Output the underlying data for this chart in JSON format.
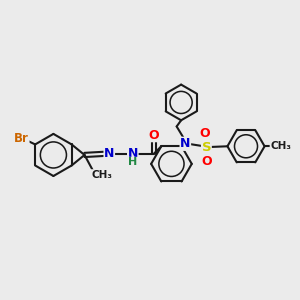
{
  "background_color": "#ebebeb",
  "bond_color": "#1a1a1a",
  "bond_width": 1.5,
  "atom_colors": {
    "Br": "#cc6600",
    "N": "#0000cc",
    "O": "#ff0000",
    "S": "#cccc00",
    "C": "#1a1a1a",
    "H": "#228844"
  },
  "fig_width": 3.0,
  "fig_height": 3.0,
  "dpi": 100,
  "xlim": [
    0,
    12
  ],
  "ylim": [
    0,
    10
  ]
}
